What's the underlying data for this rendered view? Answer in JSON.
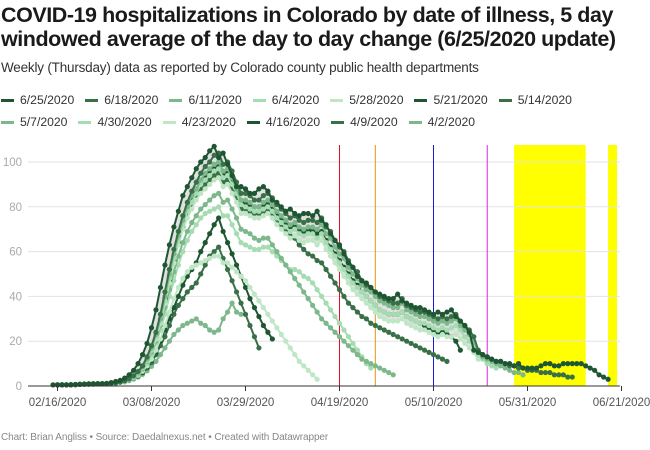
{
  "title": "COVID-19 hospitalizations in Colorado by date of illness, 5 day windowed average of the day to day change (6/25/2020 update)",
  "subtitle": "Weekly (Thursday) data as reported by Colorado county public health departments",
  "footer": "Chart: Brian Angliss • Source: Daedalnexus.net • Created with Datawrapper",
  "chart_data": {
    "type": "line",
    "title": "COVID-19 hospitalizations in Colorado by date of illness, 5 day windowed average of the day to day change (6/25/2020 update)",
    "xlabel": "",
    "ylabel": "",
    "ylim": [
      0,
      105
    ],
    "xlim": [
      "2020-02-12",
      "2020-06-22"
    ],
    "grid": true,
    "legend_position": "top",
    "y_ticks": [
      "0",
      "20",
      "40",
      "60",
      "80",
      "100"
    ],
    "x_ticks": [
      "02/16/2020",
      "03/08/2020",
      "03/29/2020",
      "04/19/2020",
      "05/10/2020",
      "05/31/2020",
      "06/21/2020"
    ],
    "x_tick_dates": [
      "2020-02-16",
      "2020-03-08",
      "2020-03-29",
      "2020-04-19",
      "2020-05-10",
      "2020-05-31",
      "2020-06-21"
    ],
    "reference_lines": [
      {
        "date": "2020-04-19",
        "color": "#e0141e"
      },
      {
        "date": "2020-04-27",
        "color": "#e8930c"
      },
      {
        "date": "2020-05-10",
        "color": "#1a1adb"
      },
      {
        "date": "2020-05-22",
        "color": "#e020e0"
      }
    ],
    "highlight_bands": [
      {
        "start": "2020-05-28",
        "end": "2020-06-13",
        "color": "#ffff00"
      },
      {
        "start": "2020-06-18",
        "end": "2020-06-20",
        "color": "#ffff00"
      }
    ],
    "series": [
      {
        "name": "6/25/2020",
        "color": "#1f5632",
        "start": "2020-02-15",
        "values": [
          0.5,
          0.5,
          0.5,
          0.5,
          0.6,
          0.7,
          0.8,
          0.9,
          0.9,
          1,
          1,
          1,
          1.2,
          1.5,
          2,
          2.5,
          3.5,
          5,
          7,
          10,
          14,
          19,
          26,
          34,
          44,
          54,
          63,
          71,
          78,
          85,
          89,
          93,
          97,
          100,
          102,
          105,
          107,
          102,
          104,
          99,
          94,
          89,
          89,
          88,
          86,
          86,
          88,
          89,
          87,
          83,
          82,
          80,
          78,
          79,
          77,
          76,
          77,
          77,
          76,
          78,
          74,
          72,
          68,
          65,
          63,
          59,
          55,
          53,
          49,
          47,
          46,
          44,
          42,
          41,
          40,
          39,
          39,
          41,
          38,
          37,
          36,
          35,
          35,
          34,
          33,
          32,
          33,
          32,
          33,
          34,
          31,
          29,
          27,
          24,
          16,
          15,
          14,
          13,
          12,
          11,
          11,
          10,
          10,
          9,
          10,
          8,
          8,
          8,
          8,
          9,
          10,
          10,
          9,
          9,
          10,
          10,
          10,
          10,
          10,
          9,
          8,
          7,
          5,
          4,
          3
        ]
      },
      {
        "name": "6/18/2020",
        "color": "#3a7048",
        "start": "2020-02-16",
        "values": [
          0.5,
          0.5,
          0.5,
          0.5,
          0.6,
          0.7,
          0.8,
          0.9,
          0.9,
          1,
          1,
          1,
          1.2,
          1.4,
          1.8,
          2.4,
          3.2,
          4.6,
          6.5,
          9,
          13,
          18,
          24,
          32,
          42,
          52,
          61,
          69,
          76,
          82,
          87,
          91,
          95,
          98,
          100,
          103,
          104,
          99,
          100,
          96,
          91,
          86,
          86,
          85,
          83,
          83,
          85,
          86,
          84,
          81,
          79,
          77,
          75,
          76,
          74,
          73,
          74,
          74,
          73,
          75,
          71,
          69,
          65,
          62,
          60,
          56,
          53,
          51,
          47,
          45,
          44,
          42,
          40,
          39,
          38,
          37,
          37,
          39,
          36,
          35,
          34,
          33,
          33,
          32,
          31,
          30,
          31,
          30,
          31,
          32,
          29,
          27,
          25,
          22,
          16,
          14,
          13,
          12,
          11,
          11,
          10,
          9,
          9,
          8,
          8,
          7,
          7,
          7,
          6,
          6,
          6,
          5,
          5,
          5,
          4,
          4
        ]
      },
      {
        "name": "6/11/2020",
        "color": "#7db88c",
        "start": "2020-02-16",
        "values": [
          0.5,
          0.5,
          0.5,
          0.5,
          0.6,
          0.7,
          0.8,
          0.9,
          0.9,
          1,
          1,
          1,
          1.2,
          1.4,
          1.8,
          2.3,
          3,
          4.3,
          6,
          8.5,
          12,
          17,
          23,
          30,
          40,
          50,
          59,
          67,
          74,
          80,
          85,
          88,
          92,
          95,
          97,
          99,
          100,
          96,
          97,
          93,
          88,
          83,
          83,
          82,
          80,
          80,
          82,
          83,
          81,
          78,
          76,
          74,
          72,
          73,
          71,
          70,
          71,
          71,
          70,
          72,
          68,
          66,
          62,
          59,
          57,
          53,
          50,
          48,
          45,
          43,
          42,
          40,
          38,
          37,
          36,
          35,
          35,
          37,
          34,
          33,
          32,
          31,
          31,
          30,
          29,
          28,
          29,
          28,
          29,
          30,
          27,
          25,
          23,
          20,
          15,
          13,
          12,
          11,
          10,
          9,
          8,
          7,
          6,
          6,
          5
        ]
      },
      {
        "name": "6/4/2020",
        "color": "#a6dcb1",
        "start": "2020-02-16",
        "values": [
          0.5,
          0.5,
          0.5,
          0.5,
          0.6,
          0.7,
          0.8,
          0.9,
          0.9,
          1,
          1,
          1,
          1.2,
          1.4,
          1.7,
          2.2,
          3,
          4.2,
          6,
          8.4,
          12,
          16,
          22,
          29,
          38,
          48,
          57,
          65,
          72,
          78,
          82,
          86,
          90,
          92,
          94,
          96,
          97,
          93,
          94,
          90,
          86,
          81,
          80,
          79,
          78,
          78,
          79,
          80,
          78,
          75,
          73,
          71,
          69,
          70,
          68,
          67,
          68,
          68,
          66,
          68,
          64,
          61,
          58,
          55,
          52,
          49,
          46,
          44,
          42,
          40,
          38,
          36,
          34,
          33,
          32,
          32,
          32,
          33,
          31,
          30,
          29,
          28,
          28,
          27,
          26,
          25,
          26,
          25,
          26,
          27,
          25,
          22,
          20,
          18,
          14,
          12,
          10,
          9,
          8
        ]
      },
      {
        "name": "5/28/2020",
        "color": "#bfe7c6",
        "start": "2020-02-16",
        "values": [
          0.5,
          0.5,
          0.5,
          0.5,
          0.6,
          0.7,
          0.8,
          0.9,
          0.9,
          1,
          1,
          1,
          1.2,
          1.4,
          1.7,
          2.2,
          2.9,
          4.1,
          5.8,
          8.2,
          11.5,
          16,
          21,
          28,
          37,
          46,
          55,
          63,
          70,
          75,
          79,
          83,
          86,
          88,
          90,
          92,
          93,
          89,
          90,
          86,
          82,
          77,
          77,
          76,
          75,
          75,
          76,
          77,
          75,
          72,
          70,
          68,
          66,
          67,
          65,
          64,
          65,
          65,
          63,
          65,
          61,
          58,
          55,
          52,
          49,
          46,
          43,
          41,
          39,
          37,
          35,
          33,
          31,
          30,
          29,
          29,
          29,
          30,
          28,
          27,
          26,
          25,
          25,
          24,
          23,
          22,
          23,
          22,
          22,
          23,
          21,
          19,
          17,
          15,
          12
        ]
      },
      {
        "name": "5/21/2020",
        "color": "#1f5632",
        "start": "2020-02-16",
        "values": [
          0.5,
          0.5,
          0.5,
          0.5,
          0.6,
          0.7,
          0.8,
          0.9,
          0.9,
          1,
          1,
          1,
          1.2,
          1.4,
          1.8,
          2.3,
          3.1,
          4.4,
          6.2,
          8.7,
          12,
          17,
          23,
          30,
          39,
          49,
          58,
          66,
          73,
          79,
          84,
          87,
          91,
          93,
          95,
          97,
          98,
          94,
          95,
          91,
          87,
          82,
          82,
          81,
          80,
          80,
          81,
          82,
          80,
          77,
          75,
          73,
          71,
          72,
          70,
          69,
          70,
          69,
          68,
          69,
          65,
          62,
          59,
          56,
          53,
          50,
          47,
          45,
          42,
          40,
          38,
          36,
          34,
          33,
          32,
          32,
          32,
          33,
          31,
          30,
          29,
          28,
          27,
          26,
          25,
          24,
          24,
          23,
          22,
          20,
          16
        ]
      },
      {
        "name": "5/14/2020",
        "color": "#3a7048",
        "start": "2020-02-16",
        "values": [
          0.5,
          0.5,
          0.5,
          0.5,
          0.6,
          0.7,
          0.8,
          0.9,
          0.9,
          1,
          1,
          1,
          1.2,
          1.4,
          1.7,
          2.2,
          3,
          4.2,
          6,
          8.4,
          12,
          16,
          22,
          29,
          38,
          47,
          56,
          64,
          71,
          77,
          81,
          85,
          88,
          90,
          92,
          94,
          95,
          91,
          92,
          88,
          84,
          79,
          79,
          78,
          77,
          77,
          78,
          79,
          77,
          74,
          72,
          70,
          67,
          66,
          63,
          61,
          59,
          58,
          56,
          55,
          52,
          49,
          46,
          43,
          40,
          37,
          35,
          33,
          31,
          30,
          28,
          27,
          26,
          25,
          24,
          23,
          22,
          21,
          20,
          19,
          18,
          17,
          16,
          15,
          14,
          13,
          12,
          11
        ]
      },
      {
        "name": "5/7/2020",
        "color": "#7db88c",
        "start": "2020-02-16",
        "values": [
          0.5,
          0.5,
          0.5,
          0.5,
          0.6,
          0.7,
          0.8,
          0.9,
          0.9,
          1,
          1,
          1,
          1.2,
          1.4,
          1.7,
          2.1,
          2.8,
          3.9,
          5.5,
          7.7,
          11,
          15,
          20,
          27,
          35,
          43,
          51,
          58,
          64,
          69,
          73,
          76,
          79,
          81,
          83,
          85,
          86,
          82,
          83,
          79,
          75,
          70,
          69,
          68,
          66,
          65,
          66,
          66,
          63,
          60,
          57,
          54,
          51,
          48,
          45,
          42,
          39,
          36,
          33,
          30,
          28,
          26,
          24,
          22,
          20,
          18,
          16,
          14,
          12,
          11,
          10,
          9,
          8,
          7,
          6,
          5
        ]
      },
      {
        "name": "4/30/2020",
        "color": "#a6dcb1",
        "start": "2020-02-16",
        "values": [
          0.5,
          0.5,
          0.5,
          0.5,
          0.6,
          0.7,
          0.8,
          0.9,
          0.9,
          1,
          1,
          1,
          1.2,
          1.4,
          1.7,
          2.1,
          2.7,
          3.8,
          5.2,
          7.3,
          10,
          14,
          19,
          25,
          32,
          40,
          47,
          54,
          60,
          65,
          69,
          72,
          75,
          77,
          78,
          79,
          80,
          76,
          76,
          72,
          68,
          64,
          63,
          62,
          61,
          61,
          62,
          62,
          60,
          58,
          56,
          54,
          52,
          52,
          51,
          49,
          48,
          46,
          43,
          40,
          37,
          34,
          31,
          28,
          25,
          22,
          19,
          16,
          13,
          10,
          8
        ]
      },
      {
        "name": "4/23/2020",
        "color": "#bfe7c6",
        "start": "2020-02-16",
        "values": [
          0.5,
          0.5,
          0.5,
          0.5,
          0.6,
          0.7,
          0.8,
          0.9,
          0.9,
          1,
          1,
          1,
          1.2,
          1.4,
          1.7,
          2,
          2.6,
          3.5,
          4.8,
          6.6,
          9,
          12,
          16,
          21,
          27,
          33,
          39,
          44,
          48,
          51,
          53,
          54,
          55,
          56,
          57,
          58,
          58,
          55,
          55,
          53,
          51,
          49,
          47,
          44,
          41,
          38,
          35,
          32,
          29,
          26,
          23,
          20,
          17,
          14,
          11,
          9,
          7,
          5,
          3
        ]
      },
      {
        "name": "4/16/2020",
        "color": "#1f5632",
        "start": "2020-02-16",
        "values": [
          0.5,
          0.5,
          0.5,
          0.5,
          0.6,
          0.7,
          0.8,
          0.9,
          0.9,
          1,
          1,
          1,
          1.2,
          1.4,
          1.7,
          2,
          2.6,
          3.4,
          4.6,
          6.2,
          8.5,
          11.5,
          15,
          20,
          25,
          30,
          35,
          40,
          45,
          49,
          52,
          55,
          60,
          64,
          68,
          72,
          75,
          69,
          64,
          59,
          54,
          49,
          44,
          39,
          35,
          31,
          27,
          24,
          21
        ]
      },
      {
        "name": "4/9/2020",
        "color": "#3a7048",
        "start": "2020-02-16",
        "values": [
          0.5,
          0.5,
          0.5,
          0.5,
          0.6,
          0.7,
          0.8,
          0.9,
          0.9,
          1,
          1,
          1,
          1.2,
          1.4,
          1.7,
          2,
          2.5,
          3.3,
          4.4,
          5.9,
          8,
          10.5,
          14,
          18,
          22,
          27,
          32,
          36,
          39,
          42,
          44,
          46,
          50,
          54,
          58,
          60,
          62,
          57,
          52,
          47,
          42,
          37,
          32,
          27,
          22,
          17
        ]
      },
      {
        "name": "4/2/2020",
        "color": "#7db88c",
        "start": "2020-02-16",
        "values": [
          0.5,
          0.5,
          0.5,
          0.5,
          0.6,
          0.7,
          0.8,
          0.9,
          0.9,
          1,
          1,
          1,
          1.2,
          1.4,
          1.6,
          1.9,
          2.4,
          3.1,
          4,
          5.2,
          6.8,
          8.8,
          11,
          14,
          17,
          20,
          23,
          25,
          27,
          28,
          29,
          30,
          28,
          27,
          25,
          24,
          25,
          30,
          33,
          37,
          33,
          32
        ]
      }
    ]
  }
}
